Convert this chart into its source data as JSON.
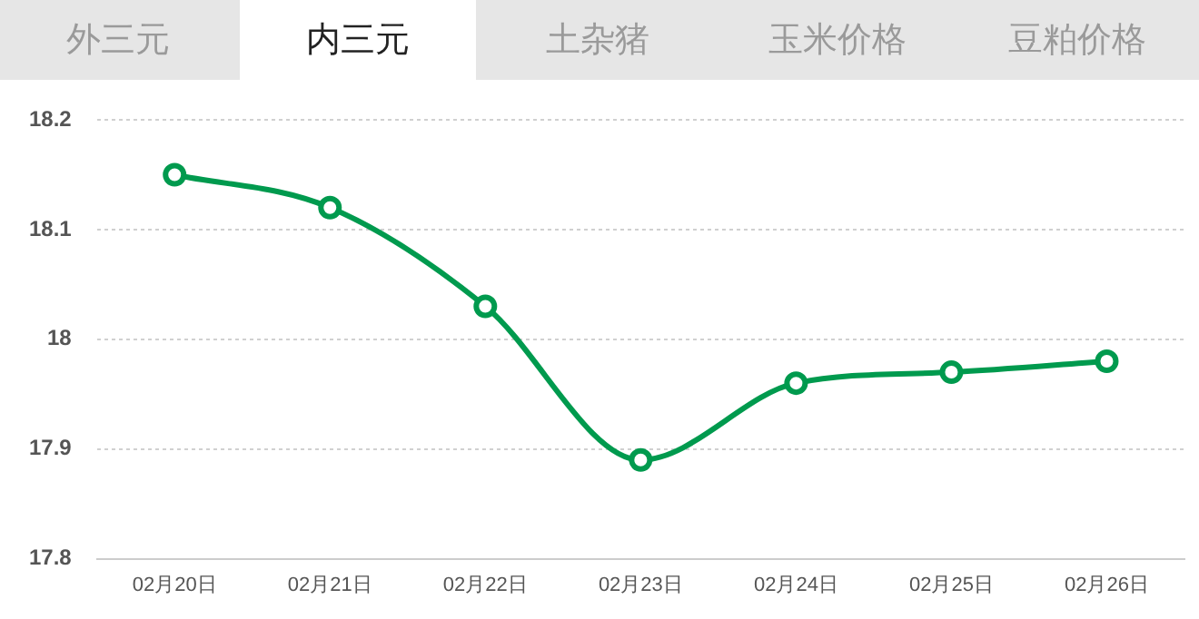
{
  "chart_data": {
    "type": "line",
    "title": "内三元",
    "annotations": [
      "外三元",
      "土杂猪",
      "玉米价格",
      "豆粕价格"
    ],
    "categories": [
      "02月20日",
      "02月21日",
      "02月22日",
      "02月23日",
      "02月24日",
      "02月25日",
      "02月26日"
    ],
    "series": [
      {
        "color": "#009a4e",
        "values": [
          18.15,
          18.12,
          18.03,
          17.89,
          17.96,
          17.97,
          17.98
        ]
      }
    ],
    "ylim": [
      17.8,
      18.2
    ],
    "yticks": [
      17.8,
      17.9,
      18,
      18.1,
      18.2
    ],
    "grid": "y",
    "marker": "circle",
    "legend": false
  }
}
